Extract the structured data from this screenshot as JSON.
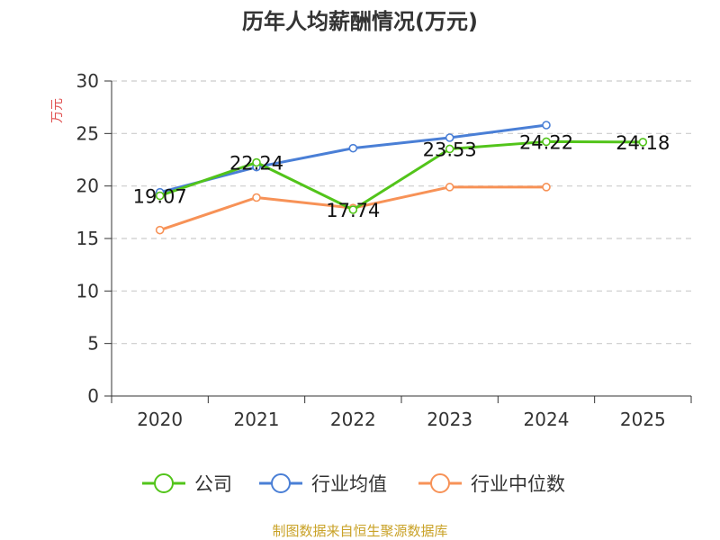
{
  "chart_data": {
    "type": "line",
    "title": "历年人均薪酬情况(万元)",
    "ylabel": "万元",
    "xlabel": "",
    "categories": [
      "2020",
      "2021",
      "2022",
      "2023",
      "2024",
      "2025"
    ],
    "ylim": [
      0,
      30
    ],
    "yticks": [
      "0",
      "5",
      "10",
      "15",
      "20",
      "25",
      "30"
    ],
    "grid": true,
    "legend_position": "bottom",
    "series": [
      {
        "name": "公司",
        "color": "#52c41a",
        "values": [
          19.07,
          22.24,
          17.74,
          23.53,
          24.22,
          24.18
        ],
        "labels": [
          "19.07",
          "22.24",
          "17.74",
          "23.53",
          "24.22",
          "24.18"
        ]
      },
      {
        "name": "行业均值",
        "color": "#4a7fd6",
        "values": [
          19.4,
          21.8,
          23.6,
          24.6,
          25.8,
          null
        ]
      },
      {
        "name": "行业中位数",
        "color": "#f79257",
        "values": [
          15.8,
          18.9,
          17.9,
          19.9,
          19.9,
          null
        ]
      }
    ]
  },
  "source": "制图数据来自恒生聚源数据库",
  "colors": {
    "source": "#c9a227",
    "ylabel": "#e05050",
    "axis": "#333333",
    "grid": "#cccccc"
  }
}
